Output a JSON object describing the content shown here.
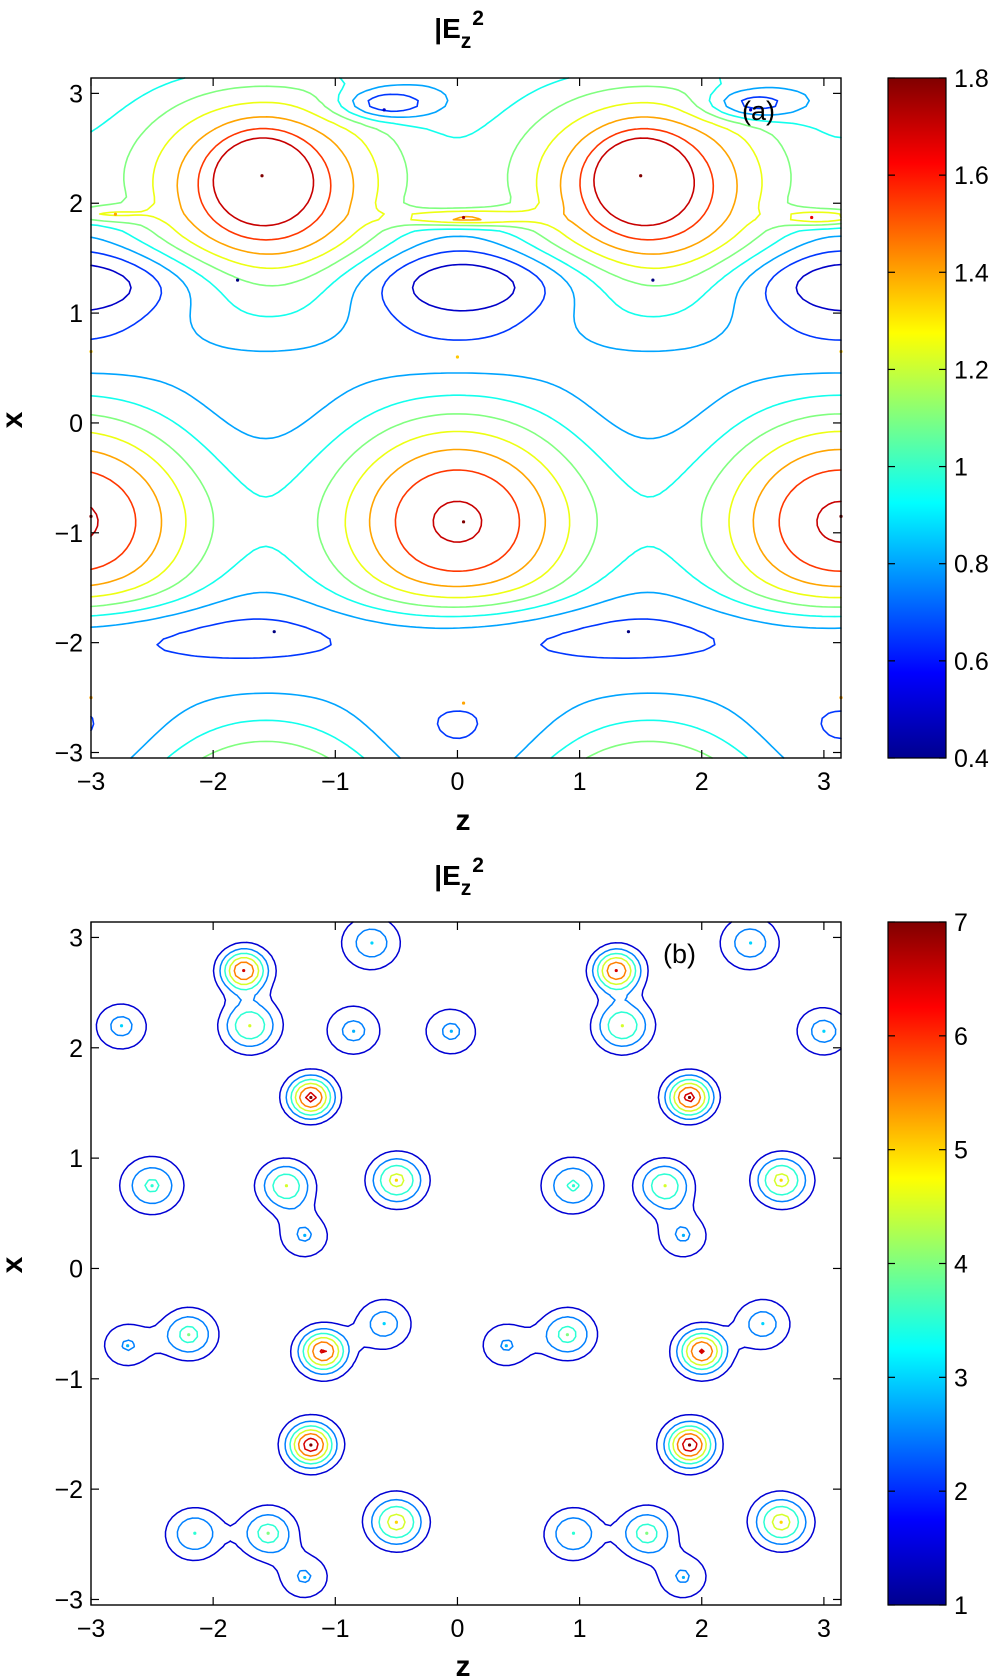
{
  "chart_data": [
    {
      "type": "contour",
      "title": "|E_z|^2",
      "title_main": "|E",
      "title_sub": "z",
      "title_sup": "2",
      "panel_label": "(a)",
      "xlabel": "z",
      "ylabel": "x",
      "xlim": [
        -3,
        3.14
      ],
      "ylim": [
        -3.05,
        3.14
      ],
      "xticks": [
        "-3",
        "-2",
        "-1",
        "0",
        "1",
        "2",
        "3"
      ],
      "yticks": [
        "-3",
        "-2",
        "-1",
        "0",
        "1",
        "2",
        "3"
      ],
      "colorbar": {
        "min": 0.4,
        "max": 1.8,
        "ticks": [
          "0.4",
          "0.6",
          "0.8",
          "1",
          "1.2",
          "1.4",
          "1.6",
          "1.8"
        ]
      },
      "levels": [
        0.5,
        0.65,
        0.8,
        0.95,
        1.1,
        1.25,
        1.4,
        1.55,
        1.7
      ],
      "peaks": [
        {
          "z": -1.6,
          "x": 2.25,
          "value": 1.8
        },
        {
          "z": 1.5,
          "x": 2.25,
          "value": 1.8
        },
        {
          "z": 0.05,
          "x": 1.87,
          "value": 1.75
        },
        {
          "z": -2.8,
          "x": 1.9,
          "value": 1.4
        },
        {
          "z": 2.9,
          "x": 1.87,
          "value": 1.65
        },
        {
          "z": 0.05,
          "x": -0.9,
          "value": 1.8
        },
        {
          "z": -3.0,
          "x": -0.85,
          "value": 1.8
        },
        {
          "z": 3.14,
          "x": -0.85,
          "value": 1.8
        },
        {
          "z": 0.0,
          "x": 0.6,
          "value": 1.35
        },
        {
          "z": -3.0,
          "x": 0.65,
          "value": 1.35
        },
        {
          "z": 3.14,
          "x": 0.65,
          "value": 1.35
        },
        {
          "z": 0.05,
          "x": -2.55,
          "value": 1.4
        },
        {
          "z": -3.0,
          "x": -2.5,
          "value": 1.4
        },
        {
          "z": 3.14,
          "x": -2.5,
          "value": 1.4
        }
      ],
      "troughs": [
        {
          "z": -1.8,
          "x": 1.3,
          "value": 0.4
        },
        {
          "z": 1.6,
          "x": 1.3,
          "value": 0.4
        },
        {
          "z": -1.5,
          "x": -1.9,
          "value": 0.4
        },
        {
          "z": 1.4,
          "x": -1.9,
          "value": 0.4
        },
        {
          "z": -0.6,
          "x": 2.85,
          "value": 0.5
        },
        {
          "z": 2.4,
          "x": 2.85,
          "value": 0.5
        }
      ]
    },
    {
      "type": "contour",
      "title": "|E_z|^2",
      "title_main": "|E",
      "title_sub": "z",
      "title_sup": "2",
      "panel_label": "(b)",
      "xlabel": "z",
      "ylabel": "x",
      "xlim": [
        -3,
        3.14
      ],
      "ylim": [
        -3.05,
        3.14
      ],
      "xticks": [
        "-3",
        "-2",
        "-1",
        "0",
        "1",
        "2",
        "3"
      ],
      "yticks": [
        "-3",
        "-2",
        "-1",
        "0",
        "1",
        "2",
        "3"
      ],
      "colorbar": {
        "min": 1,
        "max": 7,
        "ticks": [
          "1",
          "2",
          "3",
          "4",
          "5",
          "6",
          "7"
        ]
      },
      "levels": [
        1.5,
        2.5,
        3.5,
        4.5,
        5.5,
        6.5
      ],
      "peaks": [
        {
          "z": -1.2,
          "x": 1.55,
          "value": 7
        },
        {
          "z": -1.2,
          "x": -1.6,
          "value": 7
        },
        {
          "z": -1.1,
          "x": -0.75,
          "value": 6.5
        },
        {
          "z": -1.75,
          "x": 2.7,
          "value": 6.5
        },
        {
          "z": -1.7,
          "x": 2.2,
          "value": 4.5
        },
        {
          "z": -1.4,
          "x": 0.75,
          "value": 4.5
        },
        {
          "z": -0.5,
          "x": 0.8,
          "value": 5
        },
        {
          "z": -0.5,
          "x": -2.3,
          "value": 5
        },
        {
          "z": -1.55,
          "x": -2.4,
          "value": 4
        },
        {
          "z": -2.15,
          "x": -2.4,
          "value": 3.5
        },
        {
          "z": -2.2,
          "x": -0.6,
          "value": 4
        },
        {
          "z": -2.5,
          "x": 0.75,
          "value": 3.5
        },
        {
          "z": -0.7,
          "x": 2.95,
          "value": 3
        },
        {
          "z": -0.85,
          "x": 2.15,
          "value": 2.8
        },
        {
          "z": -0.05,
          "x": 2.15,
          "value": 2.8
        },
        {
          "z": -0.6,
          "x": -0.5,
          "value": 3
        },
        {
          "z": -1.25,
          "x": 0.3,
          "value": 2.8
        },
        {
          "z": -1.25,
          "x": -2.8,
          "value": 2.8
        },
        {
          "z": -2.75,
          "x": 2.2,
          "value": 3
        },
        {
          "z": -2.7,
          "x": -0.7,
          "value": 2.8
        },
        {
          "z": 1.3,
          "x": 2.7,
          "value": 6.5
        },
        {
          "z": 1.9,
          "x": 1.55,
          "value": 7
        },
        {
          "z": 1.9,
          "x": -1.6,
          "value": 7
        },
        {
          "z": 2.0,
          "x": -0.75,
          "value": 6.5
        },
        {
          "z": 1.35,
          "x": 2.2,
          "value": 4.5
        },
        {
          "z": 1.7,
          "x": 0.75,
          "value": 4.5
        },
        {
          "z": 2.65,
          "x": 0.8,
          "value": 5
        },
        {
          "z": 2.65,
          "x": -2.3,
          "value": 5
        },
        {
          "z": 1.55,
          "x": -2.4,
          "value": 4
        },
        {
          "z": 0.95,
          "x": -2.4,
          "value": 3.5
        },
        {
          "z": 0.95,
          "x": 0.75,
          "value": 3.5
        },
        {
          "z": 0.9,
          "x": -0.6,
          "value": 4
        },
        {
          "z": 2.4,
          "x": 2.95,
          "value": 3
        },
        {
          "z": 3.0,
          "x": 2.15,
          "value": 3
        },
        {
          "z": 2.5,
          "x": -0.5,
          "value": 3
        },
        {
          "z": 1.85,
          "x": 0.3,
          "value": 2.8
        },
        {
          "z": 1.85,
          "x": -2.8,
          "value": 2.8
        },
        {
          "z": 0.4,
          "x": -0.7,
          "value": 2.8
        }
      ]
    }
  ]
}
